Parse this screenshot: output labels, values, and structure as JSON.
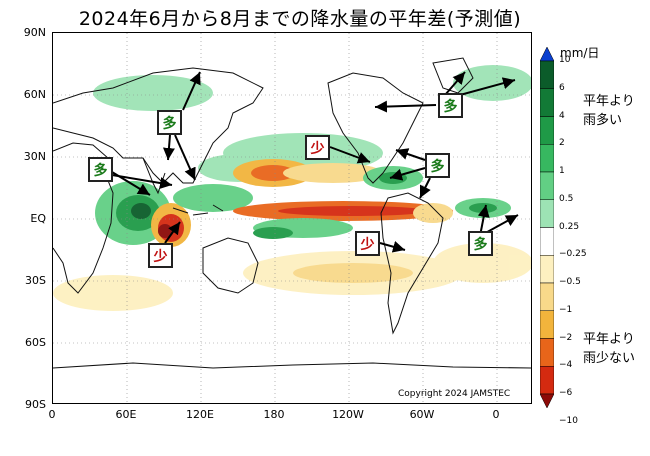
{
  "title": "2024年6月から8月までの降水量の平年差(予測値)",
  "y_axis_ticks": [
    "90N",
    "60N",
    "30N",
    "EQ",
    "30S",
    "60S",
    "90S"
  ],
  "x_axis_ticks": [
    "0",
    "60E",
    "120E",
    "180",
    "120W",
    "60W",
    "0"
  ],
  "copyright": "Copyright 2024 JAMSTEC",
  "colorbar": {
    "unit": "mm/日",
    "labels": [
      "10",
      "6",
      "4",
      "2",
      "1",
      "0.5",
      "0.25",
      "−0.25",
      "−0.5",
      "−1",
      "−2",
      "−4",
      "−6",
      "−10"
    ],
    "colors": [
      "#0a3fcf",
      "#0b5c2a",
      "#127a36",
      "#1f9a47",
      "#37b860",
      "#62cf84",
      "#9de3b4",
      "#ffffff",
      "#fdf0c0",
      "#f8d98a",
      "#f2b43c",
      "#e8651a",
      "#d42a10",
      "#8c0a08"
    ]
  },
  "legend_wet": "平年より雨多い",
  "legend_dry": "平年より雨少ない",
  "callouts": [
    {
      "label": "多",
      "kind": "wet"
    },
    {
      "label": "多",
      "kind": "wet"
    },
    {
      "label": "少",
      "kind": "dry"
    },
    {
      "label": "少",
      "kind": "dry"
    },
    {
      "label": "多",
      "kind": "wet"
    },
    {
      "label": "多",
      "kind": "wet"
    },
    {
      "label": "少",
      "kind": "dry"
    },
    {
      "label": "多",
      "kind": "wet"
    }
  ]
}
